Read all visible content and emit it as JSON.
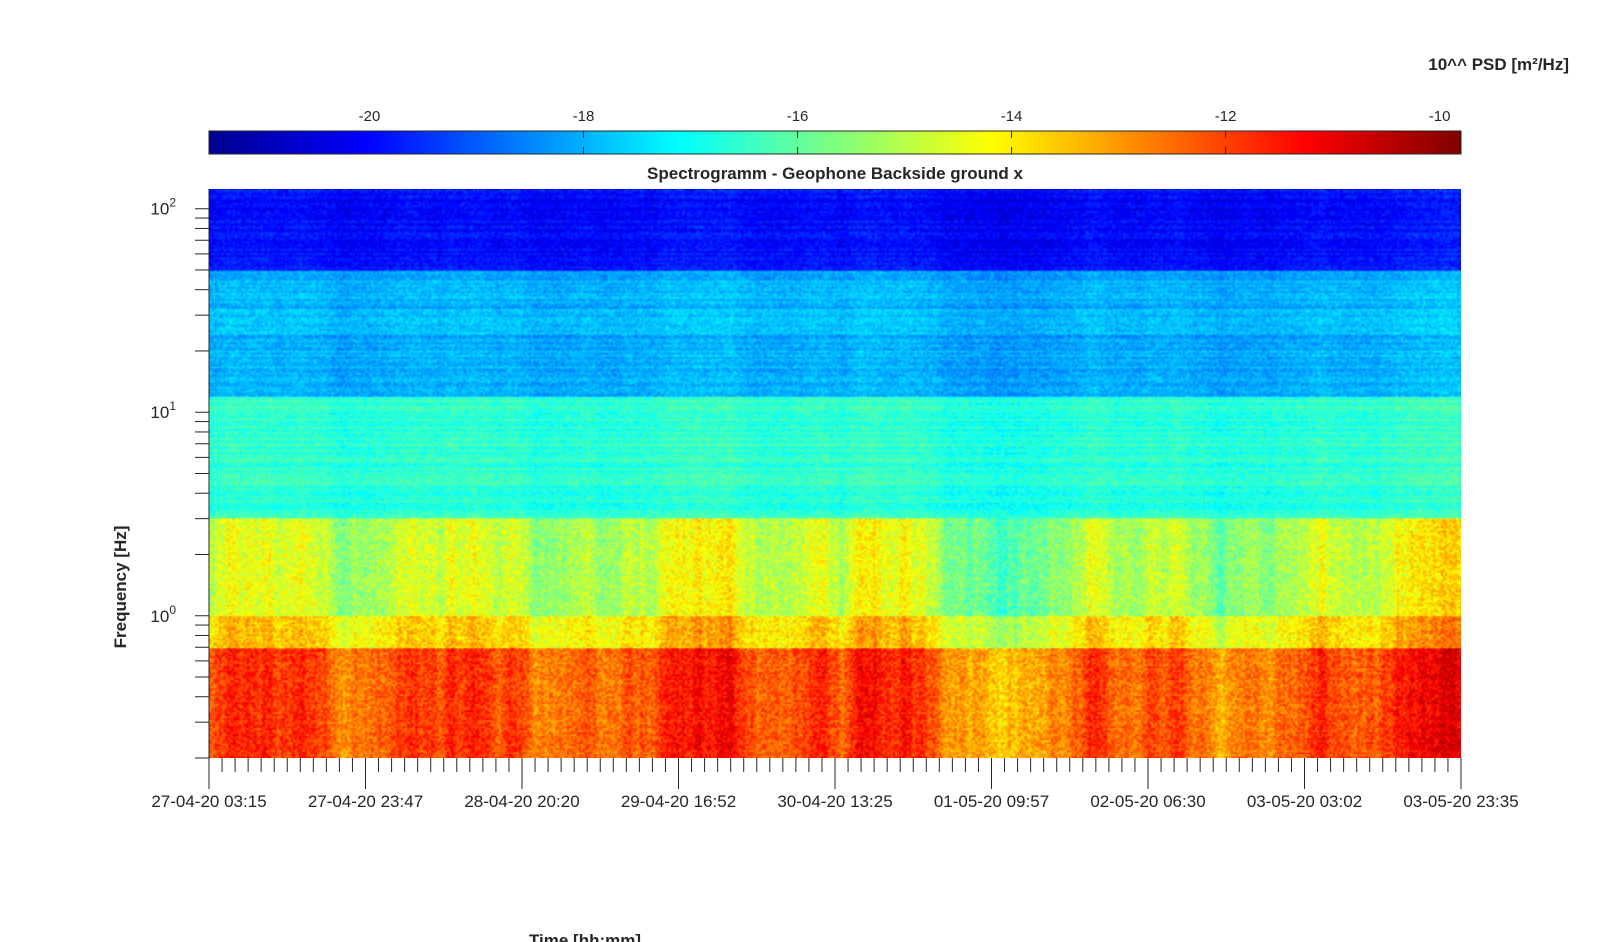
{
  "chart_data": {
    "type": "heatmap",
    "title": "Spectrogramm - Geophone Backside ground x",
    "xlabel": "Time [hh:mm]",
    "ylabel": "Frequency [Hz]",
    "y_scale": "log",
    "ylim": [
      0.2,
      125
    ],
    "y_ticks": [
      {
        "base": "10",
        "exp": "0",
        "value": 1
      },
      {
        "base": "10",
        "exp": "1",
        "value": 10
      },
      {
        "base": "10",
        "exp": "2",
        "value": 100
      }
    ],
    "x_tick_labels": [
      "27-04-20 03:15",
      "27-04-20 23:47",
      "28-04-20 20:20",
      "29-04-20 16:52",
      "30-04-20 13:25",
      "01-05-20 09:57",
      "02-05-20 06:30",
      "03-05-20 03:02",
      "03-05-20 23:35"
    ],
    "colorbar": {
      "label": "10^^ PSD [m²/Hz]",
      "ticks": [
        "-20",
        "-18",
        "-16",
        "-14",
        "-12",
        "-10"
      ],
      "range": [
        -21.5,
        -9.8
      ],
      "colormap": "jet",
      "location": "top"
    },
    "description_levels": [
      {
        "freq_range_hz": [
          50,
          125
        ],
        "log10_psd": -20.0
      },
      {
        "freq_range_hz": [
          12,
          50
        ],
        "log10_psd": -18.0
      },
      {
        "freq_range_hz": [
          3,
          12
        ],
        "log10_psd": -16.6
      },
      {
        "freq_range_hz": [
          1,
          3
        ],
        "log10_psd": -15.0
      },
      {
        "freq_range_hz": [
          0.7,
          1
        ],
        "log10_psd": -14.0
      },
      {
        "freq_range_hz": [
          0.2,
          0.7
        ],
        "log10_psd": -12.3
      }
    ],
    "grid": false
  }
}
